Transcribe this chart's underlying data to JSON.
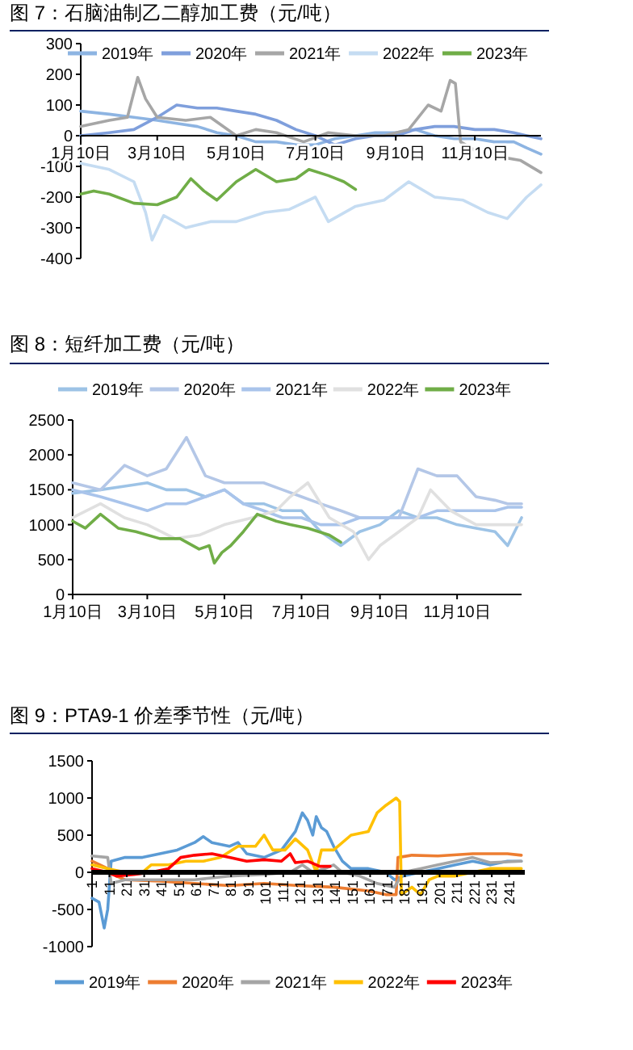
{
  "chart_data": [
    {
      "type": "line",
      "title": "图 7：石脑油制乙二醇加工费（元/吨）",
      "xlim": [
        "--01-10",
        "--12-31"
      ],
      "xticks": [
        {
          "value": "--01-10",
          "label": "1月10日"
        },
        {
          "value": "--03-10",
          "label": "3月10日"
        },
        {
          "value": "--05-10",
          "label": "5月10日"
        },
        {
          "value": "--07-10",
          "label": "7月10日"
        },
        {
          "value": "--09-10",
          "label": "9月10日"
        },
        {
          "value": "--11-10",
          "label": "11月10日"
        }
      ],
      "ylim": [
        -400,
        300
      ],
      "yticks": [
        -400,
        -300,
        -200,
        -100,
        0,
        100,
        200,
        300
      ],
      "legend": "top",
      "marker": "none",
      "line_style": "solid",
      "series": [
        {
          "name": "2019年",
          "color": "#8db4e2",
          "x": [
            "--01-10",
            "--02-01",
            "--02-20",
            "--03-10",
            "--03-25",
            "--04-10",
            "--04-25",
            "--05-10",
            "--05-25",
            "--06-10",
            "--06-25",
            "--07-10",
            "--07-25",
            "--08-10",
            "--08-25",
            "--09-10",
            "--09-25",
            "--10-10",
            "--10-25",
            "--11-10",
            "--11-25",
            "--12-10",
            "--12-20",
            "--12-31"
          ],
          "values": [
            80,
            70,
            60,
            50,
            40,
            30,
            10,
            0,
            -20,
            -20,
            -30,
            -30,
            -10,
            0,
            10,
            10,
            20,
            0,
            -10,
            -10,
            -20,
            -20,
            -40,
            -60
          ]
        },
        {
          "name": "2020年",
          "color": "#7f9fdc",
          "x": [
            "--01-10",
            "--02-01",
            "--02-20",
            "--03-10",
            "--03-25",
            "--04-10",
            "--04-25",
            "--05-10",
            "--05-25",
            "--06-10",
            "--06-25",
            "--07-10",
            "--07-25",
            "--08-10",
            "--08-25",
            "--09-10",
            "--09-25",
            "--10-10",
            "--10-25",
            "--11-10",
            "--11-25",
            "--12-10",
            "--12-20",
            "--12-31"
          ],
          "values": [
            0,
            10,
            20,
            60,
            100,
            90,
            90,
            80,
            70,
            50,
            20,
            0,
            -30,
            -10,
            0,
            0,
            20,
            30,
            30,
            20,
            20,
            10,
            0,
            -10
          ]
        },
        {
          "name": "2021年",
          "color": "#a6a6a6",
          "x": [
            "--01-10",
            "--02-01",
            "--02-15",
            "--02-23",
            "--03-01",
            "--03-10",
            "--04-01",
            "--04-20",
            "--05-10",
            "--05-25",
            "--06-10",
            "--07-01",
            "--07-20",
            "--08-10",
            "--09-01",
            "--09-20",
            "--10-05",
            "--10-15",
            "--10-22",
            "--10-26",
            "--10-30",
            "--11-15",
            "--12-01",
            "--12-15",
            "--12-31"
          ],
          "values": [
            30,
            50,
            60,
            190,
            120,
            60,
            50,
            60,
            0,
            20,
            10,
            -20,
            10,
            0,
            0,
            20,
            100,
            80,
            180,
            170,
            -20,
            -60,
            -70,
            -80,
            -120
          ]
        },
        {
          "name": "2022年",
          "color": "#c5dcf2",
          "x": [
            "--01-10",
            "--02-01",
            "--02-20",
            "--03-01",
            "--03-06",
            "--03-15",
            "--04-01",
            "--04-20",
            "--05-10",
            "--06-01",
            "--06-20",
            "--07-10",
            "--07-20",
            "--08-10",
            "--09-01",
            "--09-20",
            "--10-10",
            "--11-01",
            "--11-20",
            "--12-05",
            "--12-20",
            "--12-31"
          ],
          "values": [
            -90,
            -110,
            -150,
            -250,
            -340,
            -260,
            -300,
            -280,
            -280,
            -250,
            -240,
            -200,
            -280,
            -230,
            -210,
            -150,
            -200,
            -210,
            -250,
            -270,
            -200,
            -160
          ]
        },
        {
          "name": "2023年",
          "color": "#70ad47",
          "x": [
            "--01-10",
            "--01-20",
            "--02-01",
            "--02-20",
            "--03-10",
            "--03-25",
            "--04-05",
            "--04-15",
            "--04-25",
            "--05-10",
            "--05-25",
            "--06-10",
            "--06-25",
            "--07-05",
            "--07-20",
            "--08-01",
            "--08-10"
          ],
          "values": [
            -190,
            -180,
            -190,
            -220,
            -225,
            -200,
            -140,
            -180,
            -210,
            -150,
            -110,
            -150,
            -140,
            -110,
            -130,
            -150,
            -175
          ]
        }
      ]
    },
    {
      "type": "line",
      "title": "图 8：短纤加工费（元/吨）",
      "xlim": [
        "--01-10",
        "--12-31"
      ],
      "xticks": [
        {
          "value": "--01-10",
          "label": "1月10日"
        },
        {
          "value": "--03-10",
          "label": "3月10日"
        },
        {
          "value": "--05-10",
          "label": "5月10日"
        },
        {
          "value": "--07-10",
          "label": "7月10日"
        },
        {
          "value": "--09-10",
          "label": "9月10日"
        },
        {
          "value": "--11-10",
          "label": "11月10日"
        }
      ],
      "ylim": [
        0,
        2500
      ],
      "yticks": [
        0,
        500,
        1000,
        1500,
        2000,
        2500
      ],
      "legend": "top",
      "marker": "none",
      "line_style": "solid",
      "series": [
        {
          "name": "2019年",
          "color": "#9dc3e6",
          "x": [
            "--01-10",
            "--02-01",
            "--02-20",
            "--03-10",
            "--03-25",
            "--04-10",
            "--04-25",
            "--05-10",
            "--05-25",
            "--06-10",
            "--06-25",
            "--07-10",
            "--07-25",
            "--08-10",
            "--08-25",
            "--09-10",
            "--09-25",
            "--10-10",
            "--10-25",
            "--11-10",
            "--11-25",
            "--12-10",
            "--12-20",
            "--12-31"
          ],
          "values": [
            1450,
            1500,
            1550,
            1600,
            1500,
            1500,
            1400,
            1500,
            1300,
            1300,
            1200,
            1200,
            900,
            700,
            900,
            1000,
            1200,
            1100,
            1100,
            1000,
            950,
            900,
            700,
            1100
          ]
        },
        {
          "name": "2020年",
          "color": "#b4c7e7",
          "x": [
            "--01-10",
            "--02-01",
            "--02-20",
            "--03-10",
            "--03-25",
            "--04-10",
            "--04-25",
            "--05-10",
            "--05-25",
            "--06-10",
            "--06-25",
            "--07-10",
            "--07-25",
            "--08-10",
            "--08-25",
            "--09-10",
            "--09-25",
            "--10-10",
            "--10-25",
            "--11-10",
            "--11-25",
            "--12-10",
            "--12-20",
            "--12-31"
          ],
          "values": [
            1600,
            1500,
            1850,
            1700,
            1800,
            2250,
            1700,
            1600,
            1600,
            1600,
            1500,
            1400,
            1300,
            1200,
            1100,
            1100,
            1100,
            1800,
            1700,
            1700,
            1400,
            1350,
            1300,
            1300
          ]
        },
        {
          "name": "2021年",
          "color": "#a9c4eb",
          "x": [
            "--01-10",
            "--02-01",
            "--02-20",
            "--03-10",
            "--03-25",
            "--04-10",
            "--04-25",
            "--05-10",
            "--05-25",
            "--06-10",
            "--06-25",
            "--07-10",
            "--07-25",
            "--08-10",
            "--08-25",
            "--09-10",
            "--09-25",
            "--10-10",
            "--10-25",
            "--11-10",
            "--11-25",
            "--12-10",
            "--12-20",
            "--12-31"
          ],
          "values": [
            1500,
            1400,
            1300,
            1200,
            1300,
            1300,
            1400,
            1500,
            1300,
            1200,
            1100,
            1100,
            1000,
            1000,
            1100,
            1100,
            1100,
            1100,
            1200,
            1200,
            1200,
            1200,
            1250,
            1250
          ]
        },
        {
          "name": "2022年",
          "color": "#e0e0e0",
          "x": [
            "--01-10",
            "--02-01",
            "--02-20",
            "--03-10",
            "--04-01",
            "--04-20",
            "--05-10",
            "--06-01",
            "--06-20",
            "--07-01",
            "--07-15",
            "--08-01",
            "--08-20",
            "--09-01",
            "--09-10",
            "--09-25",
            "--10-10",
            "--10-20",
            "--11-05",
            "--11-25",
            "--12-10",
            "--12-31"
          ],
          "values": [
            1100,
            1300,
            1100,
            1000,
            800,
            850,
            1000,
            1100,
            1200,
            1400,
            1600,
            1100,
            900,
            500,
            700,
            900,
            1100,
            1500,
            1200,
            1000,
            1000,
            1000
          ]
        },
        {
          "name": "2023年",
          "color": "#70ad47",
          "x": [
            "--01-10",
            "--01-20",
            "--02-01",
            "--02-15",
            "--03-01",
            "--03-20",
            "--04-05",
            "--04-20",
            "--04-28",
            "--05-02",
            "--05-08",
            "--05-15",
            "--05-25",
            "--06-05",
            "--06-20",
            "--07-01",
            "--07-15",
            "--08-01",
            "--08-10"
          ],
          "values": [
            1050,
            950,
            1150,
            950,
            900,
            800,
            800,
            650,
            700,
            450,
            600,
            700,
            900,
            1150,
            1050,
            1000,
            950,
            850,
            750
          ]
        }
      ]
    },
    {
      "type": "line",
      "title": "图 9：PTA9-1 价差季节性（元/吨）",
      "xlim": [
        1,
        250
      ],
      "xticks": [
        1,
        11,
        21,
        31,
        41,
        51,
        61,
        71,
        81,
        91,
        101,
        111,
        121,
        131,
        141,
        151,
        161,
        171,
        181,
        191,
        201,
        211,
        221,
        231,
        241
      ],
      "ylim": [
        -1000,
        1500
      ],
      "yticks": [
        -1000,
        -500,
        0,
        500,
        1000,
        1500
      ],
      "legend": "bottom",
      "marker": "none",
      "line_style": "solid",
      "series": [
        {
          "name": "2019年",
          "color": "#5b9bd5",
          "x": [
            1,
            5,
            8,
            10,
            12,
            20,
            30,
            40,
            50,
            60,
            65,
            70,
            80,
            85,
            90,
            100,
            110,
            118,
            122,
            125,
            128,
            130,
            133,
            136,
            140,
            145,
            150,
            160,
            170,
            175,
            180,
            190,
            200,
            210,
            220,
            230,
            240,
            248
          ],
          "values": [
            -350,
            -400,
            -750,
            -500,
            150,
            200,
            200,
            250,
            300,
            400,
            480,
            400,
            350,
            400,
            250,
            200,
            300,
            550,
            800,
            700,
            500,
            750,
            600,
            550,
            350,
            150,
            50,
            50,
            0,
            -100,
            -50,
            0,
            50,
            100,
            150,
            100,
            150,
            150
          ]
        },
        {
          "name": "2020年",
          "color": "#ed7d31",
          "x": [
            1,
            10,
            15,
            20,
            40,
            60,
            80,
            100,
            120,
            140,
            160,
            170,
            176,
            177,
            185,
            200,
            220,
            240,
            248
          ],
          "values": [
            150,
            50,
            -50,
            -100,
            -120,
            -150,
            -180,
            -150,
            -180,
            -200,
            -250,
            -300,
            -300,
            200,
            230,
            220,
            250,
            250,
            230
          ]
        },
        {
          "name": "2021年",
          "color": "#a5a5a5",
          "x": [
            1,
            10,
            12,
            20,
            40,
            60,
            80,
            100,
            115,
            122,
            128,
            135,
            140,
            145,
            155,
            165,
            175,
            180,
            190,
            200,
            210,
            220,
            230,
            248
          ],
          "values": [
            220,
            200,
            -150,
            -100,
            -100,
            -100,
            -50,
            -30,
            0,
            100,
            0,
            50,
            100,
            0,
            -50,
            -150,
            -200,
            0,
            50,
            100,
            150,
            200,
            130,
            150
          ]
        },
        {
          "name": "2022年",
          "color": "#ffc000",
          "x": [
            1,
            10,
            20,
            30,
            35,
            45,
            55,
            65,
            75,
            85,
            95,
            100,
            105,
            112,
            118,
            125,
            130,
            133,
            140,
            150,
            160,
            165,
            170,
            176,
            178,
            179,
            185,
            190,
            195,
            200,
            210,
            220,
            230,
            240,
            248
          ],
          "values": [
            100,
            50,
            0,
            0,
            100,
            100,
            150,
            150,
            200,
            350,
            350,
            500,
            300,
            300,
            450,
            300,
            0,
            300,
            300,
            500,
            550,
            800,
            900,
            1000,
            950,
            -300,
            -200,
            -300,
            -100,
            -50,
            -50,
            0,
            50,
            50,
            50
          ]
        },
        {
          "name": "2023年",
          "color": "#ff0000",
          "x": [
            1,
            10,
            15,
            25,
            35,
            45,
            52,
            60,
            70,
            80,
            90,
            100,
            110,
            115,
            118,
            125,
            132,
            138
          ],
          "values": [
            50,
            0,
            -50,
            -30,
            0,
            50,
            200,
            230,
            250,
            200,
            150,
            170,
            150,
            250,
            130,
            150,
            80,
            80
          ]
        }
      ]
    }
  ]
}
